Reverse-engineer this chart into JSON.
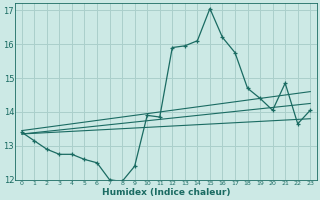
{
  "xlabel": "Humidex (Indice chaleur)",
  "ylabel": "",
  "background_color": "#cce9e5",
  "grid_color": "#aacfcb",
  "line_color": "#1a6b62",
  "xlim": [
    -0.5,
    23.5
  ],
  "ylim": [
    12,
    17.2
  ],
  "yticks": [
    12,
    13,
    14,
    15,
    16,
    17
  ],
  "xticks": [
    0,
    1,
    2,
    3,
    4,
    5,
    6,
    7,
    8,
    9,
    10,
    11,
    12,
    13,
    14,
    15,
    16,
    17,
    18,
    19,
    20,
    21,
    22,
    23
  ],
  "main_x": [
    0,
    1,
    2,
    3,
    4,
    5,
    6,
    7,
    8,
    9,
    10,
    11,
    12,
    13,
    14,
    15,
    16,
    17,
    18,
    19,
    20,
    21,
    22,
    23
  ],
  "main_y": [
    13.4,
    13.15,
    12.9,
    12.75,
    12.75,
    12.6,
    12.5,
    12.0,
    11.95,
    12.4,
    13.9,
    13.85,
    15.9,
    15.95,
    16.1,
    17.05,
    16.2,
    15.75,
    14.7,
    14.4,
    14.05,
    14.85,
    13.65,
    14.05
  ],
  "line1_x": [
    0,
    23
  ],
  "line1_y": [
    13.35,
    14.25
  ],
  "line2_x": [
    0,
    23
  ],
  "line2_y": [
    13.35,
    13.8
  ],
  "line3_x": [
    0,
    23
  ],
  "line3_y": [
    13.45,
    14.6
  ]
}
